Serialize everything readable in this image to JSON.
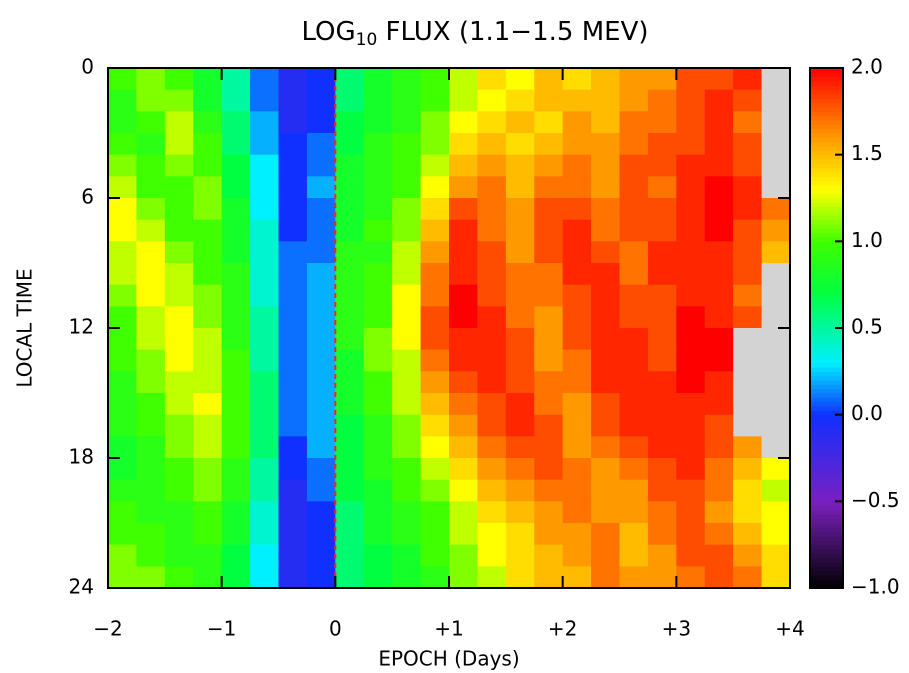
{
  "chart_data": {
    "type": "heatmap",
    "title": "LOG",
    "title_subscript": "10",
    "title_rest": " FLUX (1.1−1.5 MEV)",
    "x_label": "EPOCH (Days)",
    "y_label": "LOCAL TIME",
    "xlim": [
      -2,
      4
    ],
    "ylim": [
      0,
      24
    ],
    "y_inverted": true,
    "xticks": [
      {
        "value": -2,
        "label": "−2"
      },
      {
        "value": -1,
        "label": "−1"
      },
      0,
      {
        "value": 1,
        "label": "+1"
      },
      {
        "value": 2,
        "label": "+2"
      },
      {
        "value": 3,
        "label": "+3"
      },
      {
        "value": 4,
        "label": "+4"
      }
    ],
    "yticks": [
      0,
      6,
      12,
      18,
      24
    ],
    "x_edges": [
      -2,
      -1.75,
      -1.5,
      -1.25,
      -1,
      -0.75,
      -0.5,
      -0.25,
      0,
      0.25,
      0.5,
      0.75,
      1,
      1.25,
      1.5,
      1.75,
      2,
      2.25,
      2.5,
      2.75,
      3,
      3.25,
      3.5,
      3.75,
      4
    ],
    "y_edges": [
      0,
      1,
      2,
      3,
      4,
      5,
      6,
      7,
      8,
      9,
      10,
      11,
      12,
      13,
      14,
      15,
      16,
      17,
      18,
      19,
      20,
      21,
      22,
      23,
      24
    ],
    "vline": 0,
    "vline_color": "#ff2020",
    "missing_color": "#d3d3d3",
    "zlim": [
      -1,
      2
    ],
    "zticks": [
      {
        "value": -1,
        "label": "−1.0"
      },
      {
        "value": -0.5,
        "label": "−0.5"
      },
      {
        "value": 0,
        "label": "0.0"
      },
      {
        "value": 0.5,
        "label": "0.5"
      },
      {
        "value": 1,
        "label": "1.0"
      },
      {
        "value": 1.5,
        "label": "1.5"
      },
      {
        "value": 2,
        "label": "2.0"
      }
    ],
    "colorscale": [
      [
        -1,
        "#000000"
      ],
      [
        -0.5,
        "#7a20c0"
      ],
      [
        0,
        "#1030ff"
      ],
      [
        0.3,
        "#00f0ff"
      ],
      [
        0.7,
        "#00ff40"
      ],
      [
        1.0,
        "#40ff00"
      ],
      [
        1.3,
        "#ffff00"
      ],
      [
        1.6,
        "#ff9900"
      ],
      [
        2,
        "#ff0000"
      ]
    ],
    "z": [
      [
        1.0,
        1.1,
        1.0,
        0.8,
        0.5,
        0.1,
        -0.1,
        0.0,
        0.6,
        0.8,
        0.9,
        1.0,
        1.2,
        1.4,
        1.3,
        1.5,
        1.4,
        1.5,
        1.6,
        1.6,
        1.8,
        1.8,
        1.9,
        null
      ],
      [
        0.9,
        1.1,
        1.1,
        0.8,
        0.5,
        0.1,
        -0.1,
        0.0,
        0.6,
        0.8,
        0.9,
        1.0,
        1.2,
        1.3,
        1.4,
        1.5,
        1.5,
        1.5,
        1.6,
        1.7,
        1.8,
        1.9,
        1.8,
        null
      ],
      [
        0.9,
        1.0,
        1.2,
        0.9,
        0.6,
        0.2,
        -0.1,
        0.0,
        0.7,
        0.8,
        0.9,
        1.1,
        1.3,
        1.4,
        1.5,
        1.4,
        1.6,
        1.5,
        1.7,
        1.7,
        1.8,
        1.9,
        1.7,
        null
      ],
      [
        1.0,
        0.9,
        1.2,
        1.0,
        0.6,
        0.2,
        0.0,
        0.1,
        0.7,
        0.9,
        1.0,
        1.1,
        1.4,
        1.5,
        1.4,
        1.5,
        1.6,
        1.6,
        1.7,
        1.8,
        1.8,
        1.9,
        1.8,
        null
      ],
      [
        1.1,
        1.0,
        1.1,
        1.0,
        0.7,
        0.3,
        0.0,
        0.1,
        0.8,
        0.9,
        1.0,
        1.2,
        1.5,
        1.6,
        1.5,
        1.6,
        1.7,
        1.6,
        1.8,
        1.8,
        1.9,
        1.9,
        1.8,
        null
      ],
      [
        1.2,
        1.0,
        1.0,
        1.1,
        0.7,
        0.3,
        0.0,
        0.2,
        0.8,
        0.9,
        1.0,
        1.3,
        1.6,
        1.7,
        1.5,
        1.7,
        1.7,
        1.6,
        1.8,
        1.7,
        1.9,
        2.0,
        1.9,
        null
      ],
      [
        1.3,
        1.1,
        1.0,
        1.1,
        0.8,
        0.3,
        0.0,
        0.1,
        0.8,
        0.9,
        1.1,
        1.4,
        1.8,
        1.7,
        1.6,
        1.8,
        1.8,
        1.7,
        1.8,
        1.8,
        1.9,
        2.0,
        1.9,
        1.7
      ],
      [
        1.3,
        1.2,
        1.0,
        1.0,
        0.8,
        0.4,
        0.0,
        0.1,
        0.8,
        1.0,
        1.1,
        1.5,
        1.9,
        1.7,
        1.6,
        1.8,
        1.9,
        1.7,
        1.8,
        1.8,
        1.9,
        2.0,
        1.8,
        1.6
      ],
      [
        1.2,
        1.3,
        1.1,
        1.0,
        0.8,
        0.4,
        0.1,
        0.1,
        0.9,
        0.9,
        1.2,
        1.6,
        1.9,
        1.8,
        1.6,
        1.8,
        1.9,
        1.8,
        1.7,
        1.9,
        1.9,
        1.9,
        1.8,
        1.5
      ],
      [
        1.2,
        1.3,
        1.2,
        1.0,
        0.9,
        0.4,
        0.1,
        0.2,
        0.9,
        1.0,
        1.2,
        1.7,
        1.9,
        1.8,
        1.7,
        1.7,
        1.9,
        1.9,
        1.7,
        1.9,
        1.9,
        1.9,
        1.8,
        null
      ],
      [
        1.1,
        1.3,
        1.2,
        1.1,
        0.9,
        0.4,
        0.1,
        0.2,
        0.9,
        1.0,
        1.3,
        1.7,
        2.0,
        1.8,
        1.7,
        1.7,
        1.8,
        1.9,
        1.8,
        1.8,
        1.9,
        1.9,
        1.7,
        null
      ],
      [
        1.0,
        1.2,
        1.3,
        1.1,
        0.9,
        0.5,
        0.1,
        0.2,
        0.9,
        1.0,
        1.3,
        1.8,
        2.0,
        1.9,
        1.7,
        1.6,
        1.8,
        1.9,
        1.8,
        1.8,
        2.0,
        1.9,
        1.8,
        null
      ],
      [
        1.0,
        1.2,
        1.3,
        1.2,
        0.9,
        0.5,
        0.1,
        0.2,
        0.9,
        1.1,
        1.3,
        1.8,
        1.9,
        1.9,
        1.8,
        1.6,
        1.8,
        1.9,
        1.9,
        1.8,
        2.0,
        2.0,
        null,
        null
      ],
      [
        1.0,
        1.1,
        1.3,
        1.2,
        1.0,
        0.5,
        0.1,
        0.2,
        0.8,
        1.1,
        1.2,
        1.7,
        1.9,
        1.9,
        1.8,
        1.6,
        1.7,
        1.9,
        1.9,
        1.8,
        2.0,
        2.0,
        null,
        null
      ],
      [
        0.9,
        1.1,
        1.2,
        1.2,
        1.0,
        0.6,
        0.1,
        0.2,
        0.8,
        1.0,
        1.2,
        1.6,
        1.8,
        1.9,
        1.8,
        1.7,
        1.7,
        1.9,
        1.9,
        1.9,
        2.0,
        1.9,
        null,
        null
      ],
      [
        0.9,
        1.0,
        1.2,
        1.3,
        1.0,
        0.6,
        0.1,
        0.2,
        0.8,
        1.0,
        1.2,
        1.5,
        1.7,
        1.8,
        1.9,
        1.7,
        1.6,
        1.8,
        1.9,
        1.9,
        1.9,
        1.9,
        null,
        null
      ],
      [
        0.9,
        1.0,
        1.1,
        1.2,
        1.0,
        0.6,
        0.1,
        0.2,
        0.7,
        0.9,
        1.1,
        1.4,
        1.6,
        1.8,
        1.9,
        1.8,
        1.6,
        1.8,
        1.9,
        1.9,
        1.9,
        1.8,
        null,
        null
      ],
      [
        0.8,
        0.9,
        1.1,
        1.2,
        1.0,
        0.6,
        0.0,
        0.2,
        0.7,
        0.9,
        1.1,
        1.3,
        1.5,
        1.7,
        1.8,
        1.8,
        1.6,
        1.7,
        1.8,
        1.9,
        1.9,
        1.8,
        1.6,
        null
      ],
      [
        0.8,
        0.9,
        1.0,
        1.1,
        0.9,
        0.5,
        0.0,
        0.1,
        0.7,
        0.9,
        1.0,
        1.2,
        1.4,
        1.6,
        1.7,
        1.8,
        1.7,
        1.6,
        1.7,
        1.8,
        1.9,
        1.7,
        1.5,
        1.3
      ],
      [
        0.9,
        0.9,
        1.0,
        1.1,
        0.9,
        0.5,
        -0.1,
        0.1,
        0.7,
        0.8,
        1.0,
        1.1,
        1.3,
        1.5,
        1.6,
        1.7,
        1.7,
        1.6,
        1.6,
        1.8,
        1.8,
        1.7,
        1.4,
        1.2
      ],
      [
        1.0,
        0.9,
        0.9,
        1.0,
        0.8,
        0.4,
        -0.1,
        0.0,
        0.6,
        0.8,
        0.9,
        1.0,
        1.2,
        1.4,
        1.5,
        1.6,
        1.7,
        1.6,
        1.6,
        1.7,
        1.8,
        1.6,
        1.4,
        1.3
      ],
      [
        1.0,
        1.0,
        0.9,
        1.0,
        0.8,
        0.4,
        -0.1,
        0.0,
        0.6,
        0.8,
        0.9,
        1.0,
        1.2,
        1.3,
        1.4,
        1.6,
        1.6,
        1.7,
        1.5,
        1.7,
        1.8,
        1.7,
        1.5,
        1.3
      ],
      [
        1.1,
        1.0,
        0.9,
        0.9,
        0.7,
        0.3,
        -0.1,
        0.0,
        0.6,
        0.7,
        0.8,
        1.0,
        1.1,
        1.3,
        1.4,
        1.5,
        1.6,
        1.7,
        1.5,
        1.6,
        1.8,
        1.8,
        1.6,
        1.4
      ],
      [
        1.1,
        1.1,
        1.0,
        0.9,
        0.7,
        0.3,
        -0.1,
        0.0,
        0.6,
        0.7,
        0.8,
        0.9,
        1.1,
        1.2,
        1.4,
        1.5,
        1.5,
        1.7,
        1.6,
        1.6,
        1.7,
        1.8,
        1.7,
        1.4
      ]
    ]
  }
}
